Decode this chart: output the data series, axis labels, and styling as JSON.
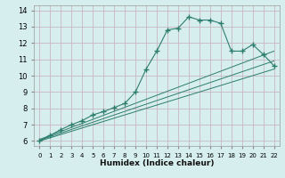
{
  "xlabel": "Humidex (Indice chaleur)",
  "xlim": [
    -0.5,
    22.5
  ],
  "ylim": [
    5.7,
    14.3
  ],
  "yticks": [
    6,
    7,
    8,
    9,
    10,
    11,
    12,
    13,
    14
  ],
  "xticks": [
    0,
    1,
    2,
    3,
    4,
    5,
    6,
    7,
    8,
    9,
    10,
    11,
    12,
    13,
    14,
    15,
    16,
    17,
    18,
    19,
    20,
    21,
    22
  ],
  "bg_color": "#d7eeee",
  "line_color": "#2d7d6e",
  "grid_color": "#c8b8c0",
  "main_line": {
    "x": [
      0,
      1,
      2,
      3,
      4,
      5,
      6,
      7,
      8,
      9,
      10,
      11,
      12,
      13,
      14,
      15,
      16,
      17,
      18,
      19,
      20,
      21,
      22
    ],
    "y": [
      6.0,
      6.35,
      6.7,
      7.0,
      7.25,
      7.6,
      7.8,
      8.05,
      8.3,
      9.0,
      10.4,
      11.5,
      12.8,
      12.9,
      13.6,
      13.4,
      13.4,
      13.2,
      11.5,
      11.5,
      11.9,
      11.3,
      10.6
    ]
  },
  "upper_line": {
    "x": [
      0,
      22
    ],
    "y": [
      6.1,
      11.5
    ]
  },
  "lower_line": {
    "x": [
      0,
      22
    ],
    "y": [
      6.0,
      10.4
    ]
  },
  "reg_line": {
    "x": [
      0,
      22
    ],
    "y": [
      6.05,
      10.9
    ]
  }
}
